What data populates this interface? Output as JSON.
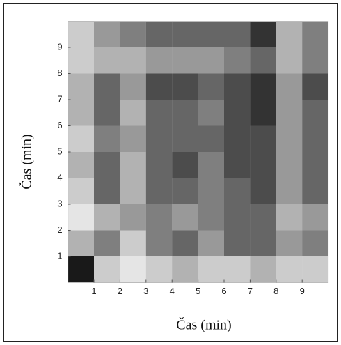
{
  "chart_data": {
    "type": "heatmap",
    "xlabel": "Čas (min)",
    "ylabel": "Čas (min)",
    "xbins": [
      0,
      1,
      2,
      3,
      4,
      5,
      6,
      7,
      8,
      9,
      10
    ],
    "ybins": [
      0,
      1,
      2,
      3,
      4,
      5,
      6,
      7,
      8,
      9,
      10
    ],
    "z": [
      [
        0.9,
        0.2,
        0.1,
        0.2,
        0.3,
        0.2,
        0.2,
        0.3,
        0.2,
        0.2
      ],
      [
        0.3,
        0.5,
        0.2,
        0.5,
        0.6,
        0.4,
        0.6,
        0.6,
        0.4,
        0.5
      ],
      [
        0.1,
        0.3,
        0.4,
        0.5,
        0.4,
        0.5,
        0.6,
        0.6,
        0.3,
        0.4
      ],
      [
        0.2,
        0.6,
        0.3,
        0.6,
        0.6,
        0.5,
        0.6,
        0.7,
        0.4,
        0.6
      ],
      [
        0.3,
        0.6,
        0.3,
        0.6,
        0.7,
        0.5,
        0.7,
        0.7,
        0.4,
        0.6
      ],
      [
        0.2,
        0.5,
        0.4,
        0.6,
        0.6,
        0.6,
        0.7,
        0.7,
        0.4,
        0.6
      ],
      [
        0.3,
        0.6,
        0.3,
        0.6,
        0.6,
        0.5,
        0.7,
        0.8,
        0.4,
        0.6
      ],
      [
        0.3,
        0.6,
        0.4,
        0.7,
        0.7,
        0.6,
        0.7,
        0.8,
        0.4,
        0.7
      ],
      [
        0.2,
        0.3,
        0.3,
        0.4,
        0.4,
        0.4,
        0.5,
        0.6,
        0.3,
        0.5
      ],
      [
        0.2,
        0.4,
        0.5,
        0.6,
        0.6,
        0.6,
        0.6,
        0.8,
        0.3,
        0.5
      ]
    ],
    "color": "#000000",
    "xlim": [
      0,
      10
    ],
    "ylim": [
      0,
      10
    ],
    "xticks": [
      1,
      2,
      3,
      4,
      5,
      6,
      7,
      8,
      9
    ],
    "yticks": [
      1,
      2,
      3,
      4,
      5,
      6,
      7,
      8,
      9
    ],
    "grid": false
  }
}
